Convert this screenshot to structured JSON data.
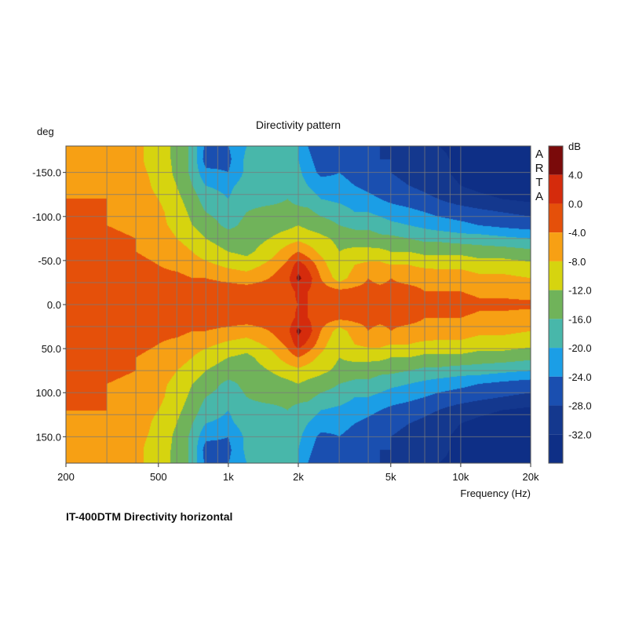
{
  "chart_data": {
    "type": "heatmap",
    "title": "Directivity pattern",
    "ylabel": "deg",
    "xlabel": "Frequency (Hz)",
    "x_scale": "log",
    "xlim": [
      200,
      20000
    ],
    "ylim": [
      -180,
      180
    ],
    "y_inverted": true,
    "x_ticks": [
      {
        "value": 200,
        "label": "200"
      },
      {
        "value": 500,
        "label": "500"
      },
      {
        "value": 1000,
        "label": "1k"
      },
      {
        "value": 2000,
        "label": "2k"
      },
      {
        "value": 5000,
        "label": "5k"
      },
      {
        "value": 10000,
        "label": "10k"
      },
      {
        "value": 20000,
        "label": "20k"
      }
    ],
    "x_gridlines": [
      300,
      400,
      500,
      600,
      700,
      800,
      900,
      1000,
      2000,
      3000,
      4000,
      5000,
      6000,
      7000,
      8000,
      9000,
      10000
    ],
    "y_ticks": [
      {
        "value": -150,
        "label": "-150.0"
      },
      {
        "value": -100,
        "label": "-100.0"
      },
      {
        "value": -50,
        "label": "-50.0"
      },
      {
        "value": 0,
        "label": "0.0"
      },
      {
        "value": 50,
        "label": "50.0"
      },
      {
        "value": 100,
        "label": "100.0"
      },
      {
        "value": 150,
        "label": "150.0"
      }
    ],
    "y_gridlines": [
      -150,
      -125,
      -100,
      -75,
      -50,
      -25,
      0,
      25,
      50,
      75,
      100,
      125,
      150
    ],
    "grid": true,
    "colorbar": {
      "unit": "dB",
      "placement": "right",
      "levels": [
        {
          "from": 4,
          "to": 8,
          "color": "#7a0a0a"
        },
        {
          "from": 0,
          "to": 4,
          "color": "#d52b0c"
        },
        {
          "from": -4,
          "to": 0,
          "color": "#e5500a"
        },
        {
          "from": -8,
          "to": -4,
          "color": "#f7a014"
        },
        {
          "from": -12,
          "to": -8,
          "color": "#d6d40f"
        },
        {
          "from": -16,
          "to": -12,
          "color": "#70b35a"
        },
        {
          "from": -20,
          "to": -16,
          "color": "#48b7aa"
        },
        {
          "from": -24,
          "to": -20,
          "color": "#1b9ee6"
        },
        {
          "from": -28,
          "to": -24,
          "color": "#1a4fb0"
        },
        {
          "from": -32,
          "to": -28,
          "color": "#14388e"
        },
        {
          "from": -36,
          "to": -32,
          "color": "#0e2f86"
        }
      ],
      "tick_labels": [
        {
          "value": 8,
          "label": "dB"
        },
        {
          "value": 4,
          "label": "4.0"
        },
        {
          "value": 0,
          "label": "0.0"
        },
        {
          "value": -4,
          "label": "-4.0"
        },
        {
          "value": -8,
          "label": "-8.0"
        },
        {
          "value": -12,
          "label": "-12.0"
        },
        {
          "value": -16,
          "label": "-16.0"
        },
        {
          "value": -20,
          "label": "-20.0"
        },
        {
          "value": -24,
          "label": "-24.0"
        },
        {
          "value": -28,
          "label": "-28.0"
        },
        {
          "value": -32,
          "label": "-32.0"
        }
      ]
    },
    "data_frequencies": [
      200,
      300,
      400,
      500,
      600,
      700,
      800,
      1000,
      1200,
      1500,
      1800,
      2000,
      2200,
      2500,
      3000,
      3500,
      4000,
      4500,
      5000,
      6000,
      7000,
      8000,
      10000,
      12000,
      15000,
      20000
    ],
    "data_angles": [
      0,
      15,
      30,
      45,
      60,
      75,
      90,
      105,
      120,
      135,
      150,
      165,
      180
    ],
    "z_db": [
      [
        -2,
        -2,
        -2,
        -1,
        -1,
        -1,
        -1,
        -1,
        -1,
        -1,
        -1,
        0,
        0,
        -1,
        -1,
        -2,
        -1,
        -2,
        -1,
        -1,
        -1,
        -2,
        -2,
        -3,
        -3,
        -3
      ],
      [
        -2,
        -2,
        -2,
        -2,
        -1,
        -1,
        -2,
        -2,
        -2,
        -2,
        -2,
        1,
        0,
        -2,
        -3,
        -3,
        -3,
        -3,
        -3,
        -3,
        -4,
        -4,
        -4,
        -5,
        -5,
        -6
      ],
      [
        -2,
        -3,
        -3,
        -3,
        -3,
        -4,
        -4,
        -5,
        -6,
        -4,
        -1,
        5,
        2,
        -4,
        -10,
        -6,
        -4,
        -5,
        -4,
        -5,
        -5,
        -6,
        -6,
        -7,
        -7,
        -8
      ],
      [
        -2,
        -3,
        -3,
        -4,
        -5,
        -6,
        -7,
        -9,
        -10,
        -7,
        -3,
        2,
        -1,
        -6,
        -12,
        -8,
        -7,
        -7,
        -8,
        -8,
        -9,
        -9,
        -9,
        -10,
        -10,
        -11
      ],
      [
        -3,
        -3,
        -4,
        -5,
        -6,
        -8,
        -10,
        -12,
        -13,
        -10,
        -6,
        -4,
        -6,
        -9,
        -12,
        -11,
        -11,
        -11,
        -12,
        -12,
        -13,
        -13,
        -13,
        -14,
        -14,
        -15
      ],
      [
        -3,
        -3,
        -4,
        -6,
        -8,
        -10,
        -12,
        -14,
        -14,
        -12,
        -10,
        -9,
        -10,
        -11,
        -13,
        -14,
        -14,
        -15,
        -15,
        -16,
        -17,
        -17,
        -18,
        -18,
        -19,
        -20
      ],
      [
        -3,
        -4,
        -5,
        -7,
        -9,
        -12,
        -14,
        -17,
        -15,
        -14,
        -13,
        -12,
        -13,
        -14,
        -16,
        -17,
        -17,
        -18,
        -19,
        -20,
        -21,
        -22,
        -23,
        -24,
        -25,
        -26
      ],
      [
        -3,
        -4,
        -5,
        -7,
        -10,
        -13,
        -16,
        -18,
        -16,
        -15,
        -15,
        -15,
        -15,
        -17,
        -18,
        -20,
        -20,
        -21,
        -22,
        -23,
        -24,
        -25,
        -26,
        -27,
        -28,
        -29
      ],
      [
        -4,
        -4,
        -6,
        -8,
        -11,
        -14,
        -18,
        -20,
        -17,
        -17,
        -16,
        -17,
        -18,
        -20,
        -21,
        -22,
        -23,
        -24,
        -25,
        -26,
        -27,
        -28,
        -30,
        -31,
        -32,
        -33
      ],
      [
        -4,
        -5,
        -6,
        -9,
        -12,
        -16,
        -20,
        -21,
        -18,
        -17,
        -18,
        -18,
        -20,
        -22,
        -23,
        -24,
        -25,
        -26,
        -27,
        -28,
        -29,
        -30,
        -32,
        -33,
        -34,
        -34
      ],
      [
        -4,
        -5,
        -7,
        -9,
        -13,
        -17,
        -23,
        -24,
        -19,
        -17,
        -18,
        -19,
        -22,
        -25,
        -24,
        -25,
        -26,
        -27,
        -28,
        -29,
        -30,
        -31,
        -33,
        -34,
        -34,
        -34
      ],
      [
        -4,
        -5,
        -7,
        -10,
        -13,
        -17,
        -26,
        -25,
        -19,
        -18,
        -18,
        -20,
        -23,
        -26,
        -25,
        -24,
        -26,
        -28,
        -28,
        -29,
        -30,
        -31,
        -33,
        -34,
        -34,
        -34
      ],
      [
        -4,
        -5,
        -7,
        -10,
        -13,
        -17,
        -25,
        -24,
        -20,
        -18,
        -19,
        -20,
        -24,
        -27,
        -25,
        -24,
        -26,
        -28,
        -29,
        -30,
        -31,
        -32,
        -33,
        -34,
        -34,
        -34
      ]
    ],
    "annotations": [
      "ARTA"
    ]
  },
  "caption": "IT-400DTM Directivity horizontal",
  "watermark_letters": [
    "A",
    "R",
    "T",
    "A"
  ]
}
